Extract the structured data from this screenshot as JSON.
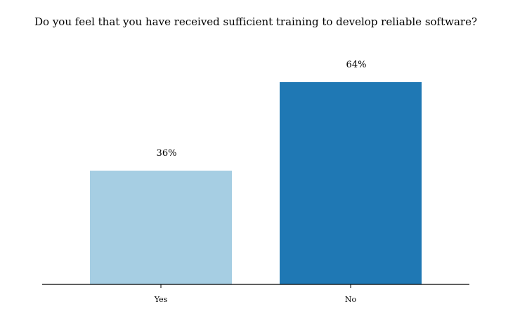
{
  "chart_data": {
    "type": "bar",
    "title": "Do you feel that you have received sufficient training to develop reliable software?",
    "categories": [
      "Yes",
      "No"
    ],
    "values": [
      36,
      64
    ],
    "value_labels": [
      "36%",
      "64%"
    ],
    "colors": [
      "#a6cee3",
      "#1f78b4"
    ],
    "xlabel": "",
    "ylabel": "",
    "ylim": [
      0,
      70
    ],
    "grid": false,
    "legend": "none"
  }
}
